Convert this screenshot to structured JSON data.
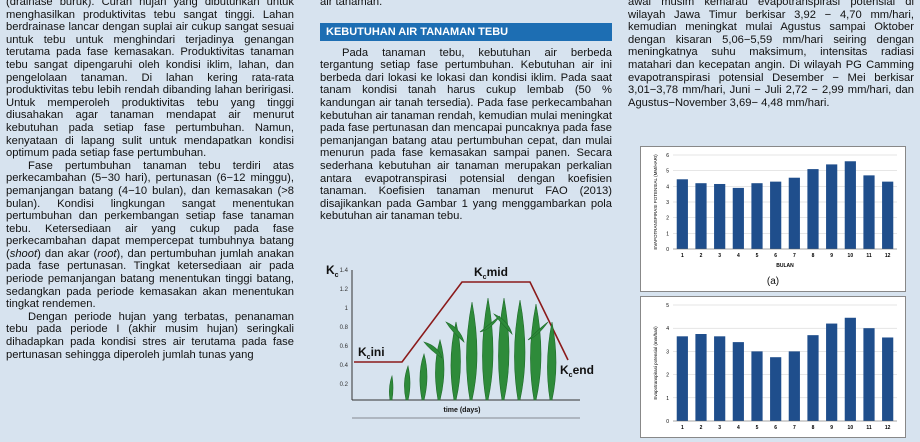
{
  "col1": {
    "p0": "(drainase buruk). Curah hujan yang dibutuhkan untuk menghasilkan produktivitas tebu sangat tinggi. Lahan berdrainase lancar dengan suplai air cukup sangat sesuai untuk tebu untuk menghindari terjadinya genangan terutama pada fase kemasakan. Produktivitas tanaman tebu sangat dipengaruhi oleh kondisi iklim, lahan, dan pengelolaan tanaman. Di lahan kering rata-rata produktivitas tebu lebih rendah dibanding lahan beririgasi. Untuk memperoleh produktivitas tebu yang tinggi diusahakan agar tanaman mendapat air menurut kebutuhan pada setiap fase pertumbuhan. Namun, kenyataan di lapang sulit untuk mendapatkan kondisi optimum pada setiap fase pertumbuhan.",
    "p1": "Fase pertumbuhan tanaman tebu terdiri atas perkecambahan (5−30 hari), pertunasan (6−12 minggu), pemanjangan batang (4−10 bulan), dan kemasakan (>8 bulan). Kondisi lingkungan sangat menentukan pertumbuhan dan perkembangan setiap fase tanaman tebu. Ketersediaan air yang cukup pada fase perkecambahan dapat mempercepat tumbuhnya batang (",
    "p1_i1": "shoot",
    "p1_b": ") dan akar (",
    "p1_i2": "root",
    "p1_c": "), dan pertumbuhan jumlah anakan pada fase pertunasan. Tingkat ketersediaan air pada periode pemanjangan batang menentukan tinggi batang, sedangkan pada periode kemasakan akan menentukan tingkat rendemen.",
    "p2": "Dengan periode hujan yang terbatas, penanaman tebu pada periode I (akhir musim hujan) seringkali dihadapkan pada kondisi stres air terutama pada fase pertunasan sehingga diperoleh jumlah tunas yang"
  },
  "col2": {
    "top": "air tanaman.",
    "heading": "KEBUTUHAN AIR TANAMAN TEBU",
    "p1": "Pada tanaman tebu, kebutuhan air berbeda tergantung setiap fase pertumbuhan. Kebutuhan air ini berbeda dari lokasi ke lokasi dan kondisi iklim. Pada saat tanam kondisi tanah harus cukup lembab (50 % kandungan air tanah tersedia). Pada fase perkecambahan kebutuhan air tanaman rendah, kemudian mulai meningkat pada fase pertunasan dan mencapai puncaknya pada fase pemanjangan batang atau pertumbuhan cepat, dan mulai menurun pada fase kemasakan sampai panen. Secara sederhana kebutuhan air tanaman merupakan perkalian antara evapotranspirasi potensial dengan koefisien tanaman. Koefisien tanaman menurut FAO (2013) disajikankan pada Gambar 1 yang menggambarkan pola kebutuhan air tanaman tebu."
  },
  "kc": {
    "kc_label": "K",
    "kc_sub": "c",
    "ini_k": "K",
    "ini_sub": "c",
    "ini_txt": "ini",
    "mid_k": "K",
    "mid_sub": "c",
    "mid_txt": "mid",
    "end_k": "K",
    "end_sub": "c",
    "end_txt": "end",
    "xlabel": "time (days)",
    "yticks": [
      "1.4",
      "1.2",
      "1",
      "0.8",
      "0.6",
      "0.4",
      "0.2"
    ]
  },
  "col3": {
    "p1": "awal musim kemarau evapotranspirasi potensial di wilayah Jawa Timur berkisar 3,92 − 4,70 mm/hari, kemudian meningkat mulai Agustus sampai Oktober dengan kisaran 5,06−5,59 mm/hari seiring dengan meningkatnya suhu maksimum, intensitas radiasi matahari dan kecepatan angin. Di wilayah PG Camming evapotranspirasi potensial Desember − Mei berkisar 3,01−3,78 mm/hari, Juni − Juli 2,72 − 2,99 mm/hari, dan Agustus−November 3,69− 4,48 mm/hari.",
    "caption_a": "(a)"
  },
  "chart_data": [
    {
      "type": "bar",
      "categories": [
        "1",
        "2",
        "3",
        "4",
        "5",
        "6",
        "7",
        "8",
        "9",
        "10",
        "11",
        "12"
      ],
      "values": [
        4.45,
        4.2,
        4.15,
        3.9,
        4.2,
        4.3,
        4.55,
        5.1,
        5.4,
        5.6,
        4.7,
        4.3
      ],
      "ylabel": "EVAPOTRANSPIRASI POTENSIAL (MM/HARI)",
      "xlabel": "BULAN",
      "ylim": [
        0,
        6
      ],
      "yticks": [
        0,
        1,
        2,
        3,
        4,
        5,
        6
      ],
      "color": "#1f4e8c"
    },
    {
      "type": "bar",
      "categories": [
        "1",
        "2",
        "3",
        "4",
        "5",
        "6",
        "7",
        "8",
        "9",
        "10",
        "11",
        "12"
      ],
      "values": [
        3.65,
        3.75,
        3.65,
        3.4,
        3.0,
        2.75,
        3.0,
        3.7,
        4.2,
        4.45,
        4.0,
        3.6
      ],
      "ylabel": "Evapotranspirasi potensial (mm/hari)",
      "xlabel": "",
      "ylim": [
        0,
        5
      ],
      "yticks": [
        0,
        1,
        2,
        3,
        4,
        5
      ],
      "color": "#1f4e8c"
    }
  ]
}
